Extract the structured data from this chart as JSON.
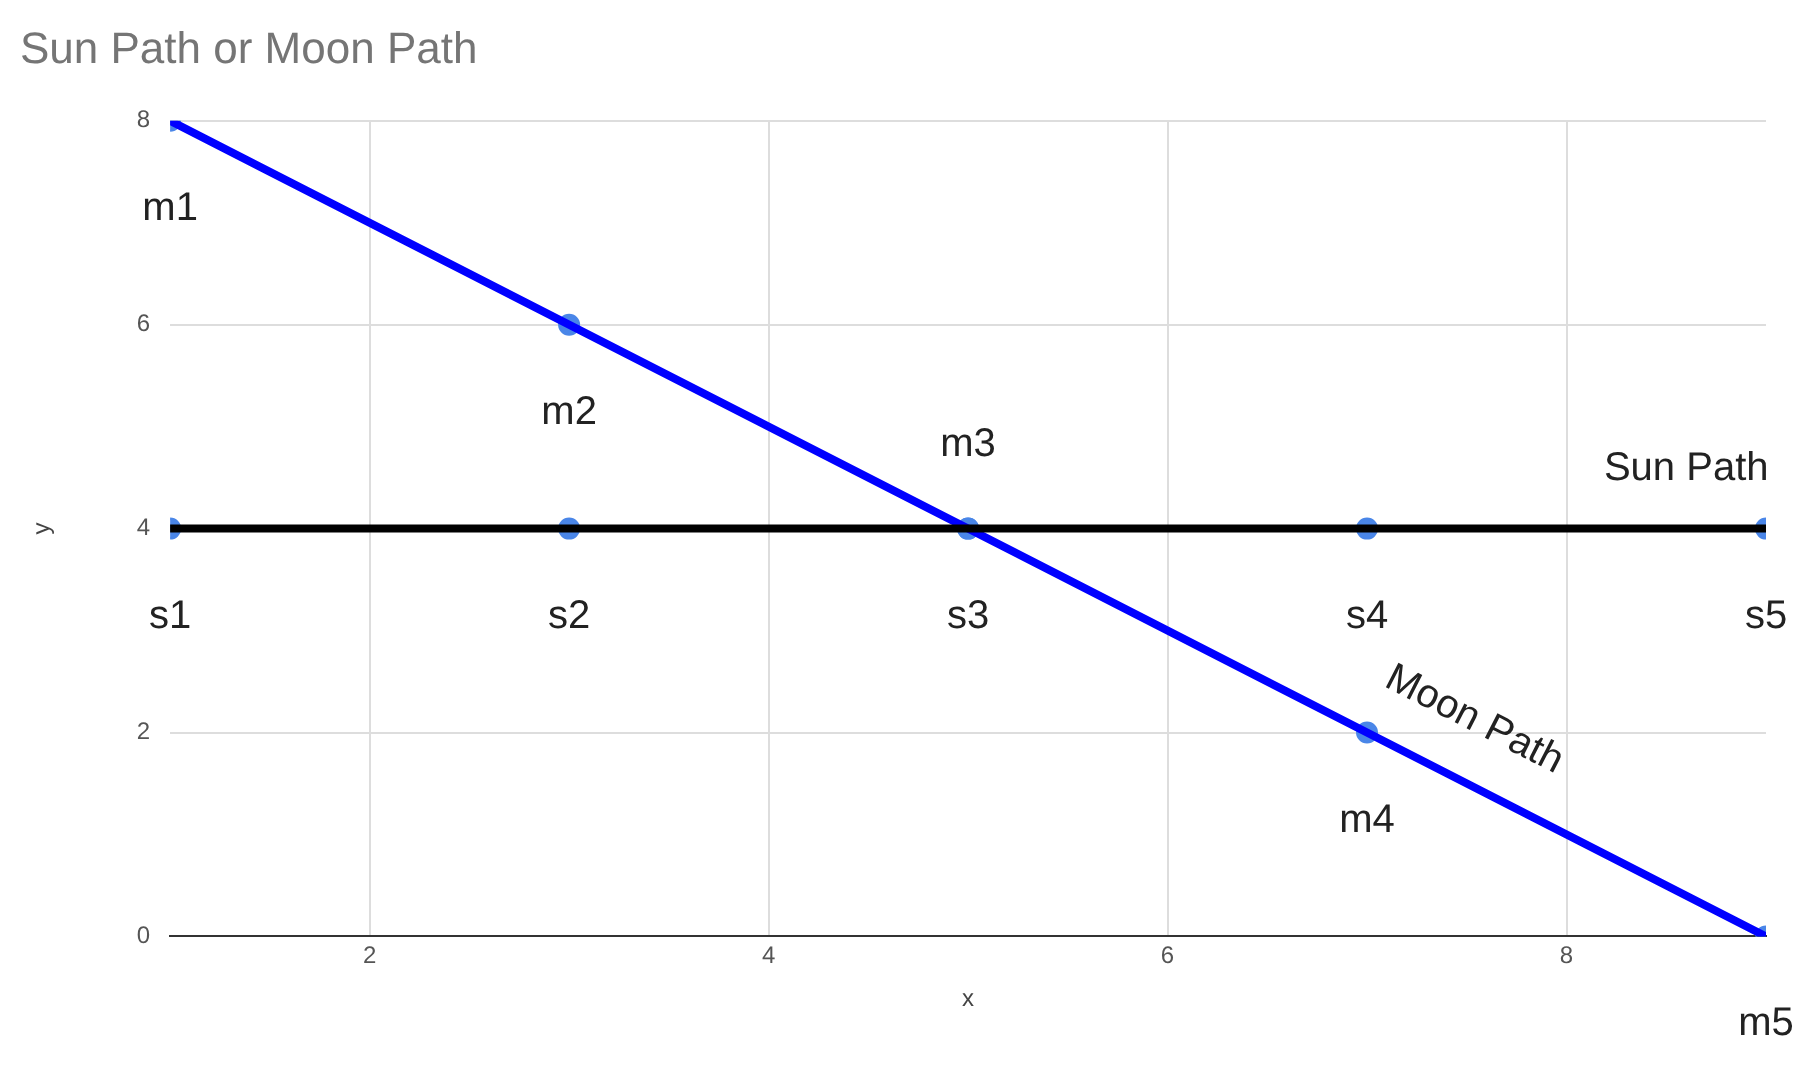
{
  "chart_data": {
    "type": "scatter",
    "title": "Sun Path or Moon Path",
    "xlabel": "x",
    "ylabel": "y",
    "xlim": [
      1,
      9
    ],
    "xticks": [
      2,
      4,
      6,
      8
    ],
    "ylim": [
      0,
      8
    ],
    "yticks": [
      0,
      2,
      4,
      6,
      8
    ],
    "grid": true,
    "legend": false,
    "series": [
      {
        "color": "#4a86e8",
        "marker": "circle",
        "x": [
          1,
          3,
          5,
          7,
          9
        ],
        "values": [
          4,
          4,
          4,
          4,
          4
        ],
        "value_labels": [
          "s1",
          "s2",
          "s3",
          "s4",
          "s5"
        ]
      },
      {
        "color": "#4a86e8",
        "marker": "circle",
        "x": [
          1,
          3,
          5,
          7,
          9
        ],
        "values": [
          8,
          6,
          4,
          2,
          0
        ],
        "value_labels": [
          "m1",
          "m2",
          "m3",
          "m4",
          "m5"
        ]
      },
      {
        "type": "line",
        "name": "Sun Path",
        "color": "#000000",
        "marker": "none",
        "line_style": "solid",
        "x": [
          1,
          9
        ],
        "values": [
          4,
          4
        ]
      },
      {
        "type": "line",
        "name": "Moon Path",
        "color": "#0000ff",
        "marker": "none",
        "line_style": "solid",
        "x": [
          1,
          9
        ],
        "values": [
          8,
          0
        ]
      }
    ]
  }
}
